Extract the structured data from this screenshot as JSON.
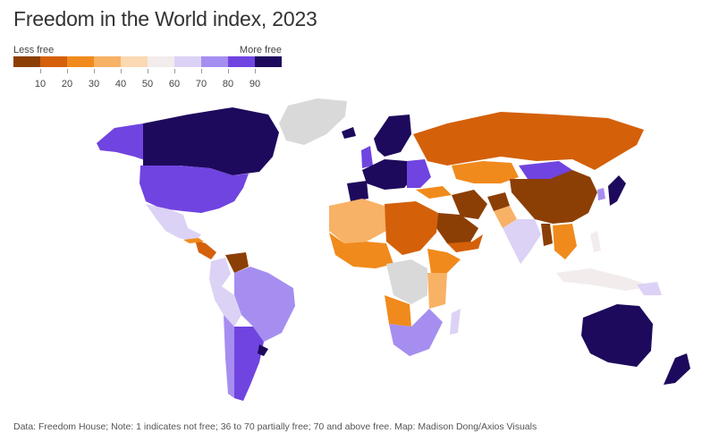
{
  "title": "Freedom in the World index, 2023",
  "legend": {
    "low_label": "Less free",
    "high_label": "More free",
    "ticks": [
      "10",
      "20",
      "30",
      "40",
      "50",
      "60",
      "70",
      "80",
      "90"
    ],
    "colors": [
      "#8b3f04",
      "#d4600a",
      "#f08a1c",
      "#f7b266",
      "#fbd9b2",
      "#f3ecec",
      "#dcd2f5",
      "#a68ef0",
      "#7044e0",
      "#1e0a5c"
    ]
  },
  "note": "Data: Freedom House; Note: 1 indicates not free; 36 to 70 partially free; 70 and above free. Map: Madison Dong/Axios Visuals",
  "no_data_color": "#d9d9d9"
}
